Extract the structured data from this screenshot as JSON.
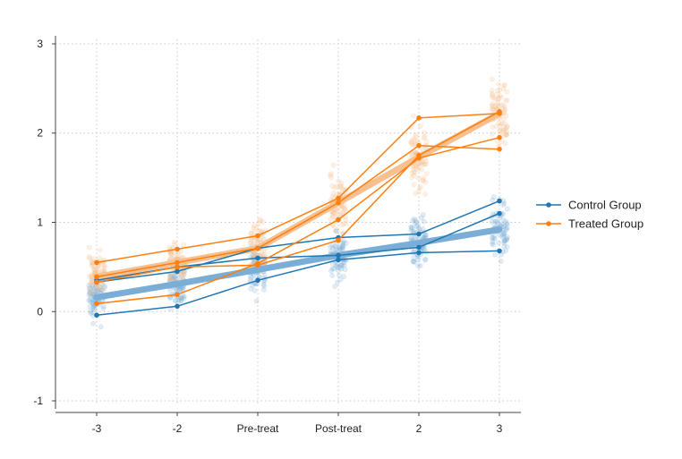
{
  "colors": {
    "control": "#1f77b4",
    "treated": "#ff7f0e",
    "control_light": "#7aaed6",
    "treated_light": "#f8c08f"
  },
  "chart_data": {
    "type": "line",
    "title": "",
    "xlabel": "",
    "ylabel": "",
    "categories": [
      "-3",
      "-2",
      "Pre-treat",
      "Post-treat",
      "2",
      "3"
    ],
    "yticks": [
      "-1",
      "0",
      "1",
      "2",
      "3"
    ],
    "ylim": [
      -1.05,
      3.05
    ],
    "grid": true,
    "legend_position": "right",
    "legend": [
      {
        "key": "control",
        "label": "Control Group"
      },
      {
        "key": "treated",
        "label": "Treated Group"
      }
    ],
    "jitter_clusters": {
      "control": [
        {
          "center": 0.15,
          "spread": 0.22
        },
        {
          "center": 0.3,
          "spread": 0.22
        },
        {
          "center": 0.47,
          "spread": 0.22
        },
        {
          "center": 0.63,
          "spread": 0.24
        },
        {
          "center": 0.78,
          "spread": 0.26
        },
        {
          "center": 0.92,
          "spread": 0.28
        }
      ],
      "treated": [
        {
          "center": 0.39,
          "spread": 0.22
        },
        {
          "center": 0.55,
          "spread": 0.22
        },
        {
          "center": 0.72,
          "spread": 0.24
        },
        {
          "center": 1.22,
          "spread": 0.26
        },
        {
          "center": 1.73,
          "spread": 0.3
        },
        {
          "center": 2.22,
          "spread": 0.32
        }
      ]
    },
    "mean_series": [
      {
        "key": "control",
        "values": [
          0.16,
          0.31,
          0.47,
          0.63,
          0.77,
          0.92
        ]
      },
      {
        "key": "treated",
        "values": [
          0.39,
          0.55,
          0.71,
          1.22,
          1.73,
          2.22
        ]
      }
    ],
    "individual_series": [
      {
        "key": "control",
        "values": [
          0.35,
          0.5,
          0.6,
          0.63,
          0.72,
          1.1
        ]
      },
      {
        "key": "control",
        "values": [
          0.33,
          0.45,
          0.71,
          0.83,
          0.87,
          1.24
        ]
      },
      {
        "key": "control",
        "values": [
          -0.04,
          0.06,
          0.35,
          0.58,
          0.66,
          0.68
        ]
      },
      {
        "key": "treated",
        "values": [
          0.55,
          0.7,
          0.85,
          1.27,
          2.17,
          2.22
        ]
      },
      {
        "key": "treated",
        "values": [
          0.39,
          0.55,
          0.71,
          1.22,
          1.86,
          1.82
        ]
      },
      {
        "key": "treated",
        "values": [
          0.09,
          0.19,
          0.54,
          1.03,
          1.72,
          1.95
        ]
      },
      {
        "key": "treated",
        "values": [
          0.33,
          0.5,
          0.52,
          0.8,
          1.75,
          2.24
        ]
      }
    ]
  }
}
